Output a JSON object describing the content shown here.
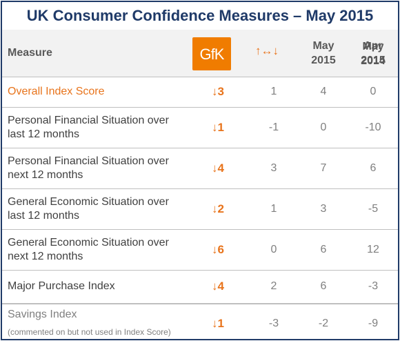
{
  "title": "UK Consumer Confidence Measures – May 2015",
  "logo_text": "GfK",
  "header": {
    "measure": "Measure",
    "trend_symbol": "↑↔↓",
    "columns": [
      {
        "line1": "May",
        "line2": "2015"
      },
      {
        "line1": "Apr",
        "line2": "2015"
      },
      {
        "line1": "May",
        "line2": "2014"
      }
    ]
  },
  "rows": [
    {
      "line1": "Overall Index Score",
      "line2": "",
      "trend": "↓3",
      "may2015": "1",
      "apr2015": "4",
      "may2014": "0"
    },
    {
      "line1": "Personal Financial Situation over",
      "line2": "last 12 months",
      "trend": "↓1",
      "may2015": "-1",
      "apr2015": "0",
      "may2014": "-10"
    },
    {
      "line1": "Personal Financial Situation over",
      "line2": "next 12 months",
      "trend": "↓4",
      "may2015": "3",
      "apr2015": "7",
      "may2014": "6"
    },
    {
      "line1": "General Economic Situation over",
      "line2": "last 12 months",
      "trend": "↓2",
      "may2015": "1",
      "apr2015": "3",
      "may2014": "-5"
    },
    {
      "line1": "General Economic Situation over",
      "line2": "next 12 months",
      "trend": "↓6",
      "may2015": "0",
      "apr2015": "6",
      "may2014": "12"
    },
    {
      "line1": "Major Purchase Index",
      "line2": "",
      "trend": "↓4",
      "may2015": "2",
      "apr2015": "6",
      "may2014": "-3"
    },
    {
      "line1": "Savings Index",
      "line2": "(commented on but not used in Index Score)",
      "trend": "↓1",
      "may2015": "-3",
      "apr2015": "-2",
      "may2014": "-9"
    }
  ],
  "colors": {
    "title": "#1f3a68",
    "accent": "#e8741c",
    "logo": "#f07c00",
    "header_bg": "#f2f2f2"
  }
}
